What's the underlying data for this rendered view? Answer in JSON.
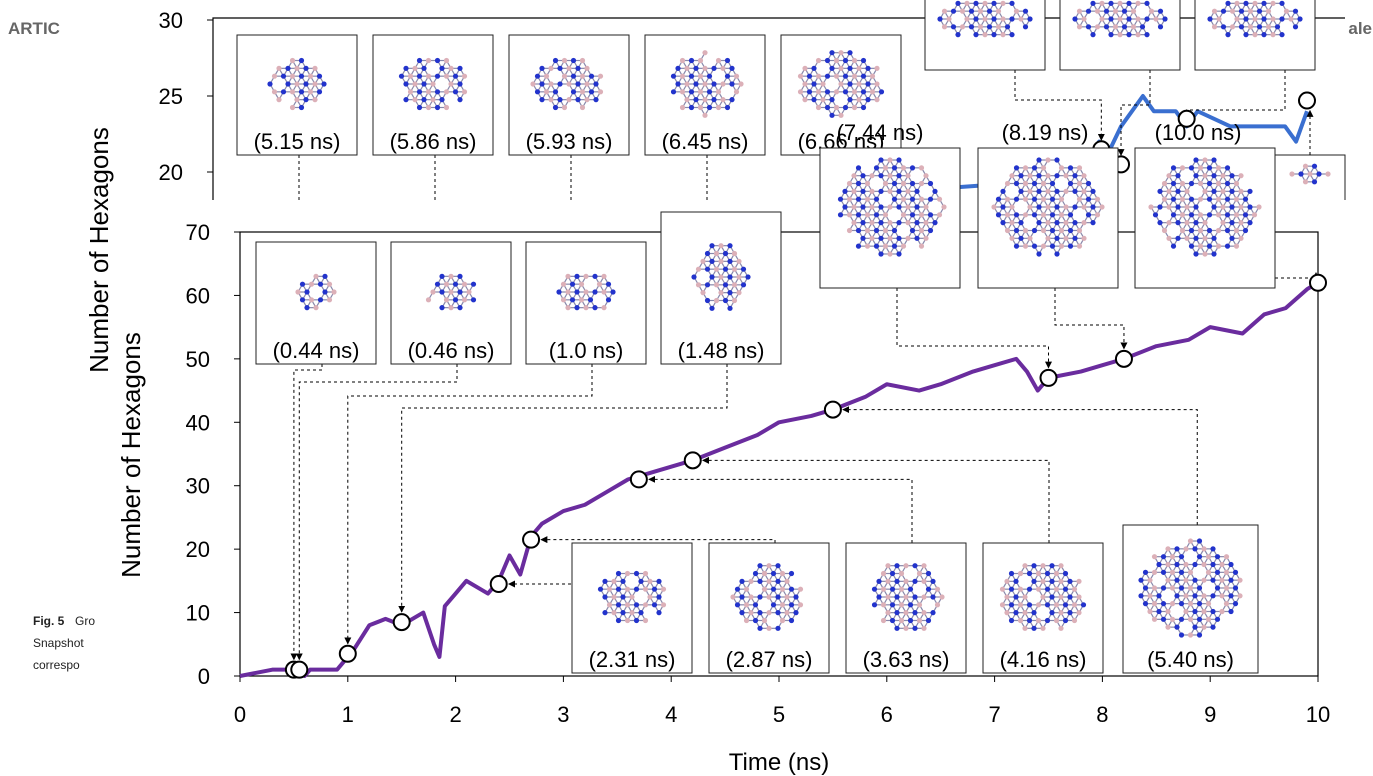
{
  "page": {
    "header_left": "ARTIC",
    "header_right": "ale",
    "caption": [
      "Fig. 5",
      "Gro",
      "Snapshot",
      "correspo"
    ]
  },
  "chart_data": [
    {
      "type": "line",
      "xlabel": "Time (ns)",
      "ylabel": "Number of Hexagons",
      "xlim": [
        0,
        10
      ],
      "ylim": [
        0,
        70
      ],
      "xticks": [
        0,
        1,
        2,
        3,
        4,
        5,
        6,
        7,
        8,
        9,
        10
      ],
      "yticks": [
        0,
        10,
        20,
        30,
        40,
        50,
        60,
        70
      ],
      "series": [
        {
          "color": "#6a2c9e",
          "x": [
            0,
            0.3,
            0.45,
            0.6,
            0.65,
            0.9,
            1.0,
            1.05,
            1.2,
            1.35,
            1.5,
            1.7,
            1.8,
            1.85,
            1.9,
            2.0,
            2.1,
            2.3,
            2.4,
            2.5,
            2.6,
            2.7,
            2.8,
            3.0,
            3.2,
            3.4,
            3.6,
            3.8,
            4.0,
            4.2,
            4.5,
            4.8,
            5.0,
            5.3,
            5.5,
            5.8,
            6.0,
            6.3,
            6.5,
            6.8,
            7.0,
            7.2,
            7.3,
            7.4,
            7.5,
            7.8,
            8.0,
            8.2,
            8.5,
            8.8,
            9.0,
            9.3,
            9.5,
            9.7,
            9.9,
            10.0
          ],
          "values": [
            0,
            1,
            1,
            0,
            1,
            1,
            3,
            4,
            8,
            9,
            8,
            10,
            5,
            3,
            11,
            13,
            15,
            13,
            15,
            19,
            16,
            22,
            24,
            26,
            27,
            29,
            31,
            32,
            33,
            34,
            36,
            38,
            40,
            41,
            42,
            44,
            46,
            45,
            46,
            48,
            49,
            50,
            48,
            45,
            47,
            48,
            49,
            50,
            52,
            53,
            55,
            54,
            57,
            58,
            61,
            62
          ]
        }
      ],
      "markers": {
        "x": [
          0.5,
          0.55,
          1.0,
          1.5,
          2.4,
          2.7,
          3.7,
          4.2,
          5.5,
          7.5,
          8.2,
          10.0
        ],
        "values": [
          1,
          1,
          3.5,
          8.5,
          14.5,
          21.5,
          31,
          34,
          42,
          47,
          50,
          62
        ]
      },
      "snapshot_labels": [
        "(0.44 ns)",
        "(0.46 ns)",
        "(1.0 ns)",
        "(1.48 ns)",
        "(2.31 ns)",
        "(2.87 ns)",
        "(3.63 ns)",
        "(4.16 ns)",
        "(5.40 ns)"
      ]
    },
    {
      "type": "line",
      "ylabel": "Number of Hexagons",
      "xlim": [
        0,
        10
      ],
      "ylim": [
        20,
        30
      ],
      "yticks": [
        20,
        25,
        30
      ],
      "series": [
        {
          "color": "#3a6fd0",
          "x": [
            6.8,
            7.2,
            7.6,
            7.8,
            8.0,
            8.1,
            8.2,
            8.3,
            8.5,
            8.6,
            8.8,
            8.9,
            9.0,
            9.3,
            9.5,
            9.8,
            9.9,
            10.0
          ],
          "values": [
            19,
            19.2,
            19,
            20,
            21,
            22,
            21.5,
            23,
            25,
            24,
            24,
            23,
            24,
            23,
            23,
            23,
            22,
            24
          ]
        }
      ],
      "markers": {
        "x": [
          8.12,
          8.3,
          8.9,
          10.0
        ],
        "values": [
          21.5,
          20.5,
          23.5,
          24.7
        ]
      },
      "snapshot_labels": [
        "(5.15 ns)",
        "(5.86 ns)",
        "(5.93 ns)",
        "(6.45 ns)",
        "(6.66 ns)",
        "(7.44 ns)",
        "(8.19 ns)",
        "(10.0 ns)"
      ]
    }
  ]
}
